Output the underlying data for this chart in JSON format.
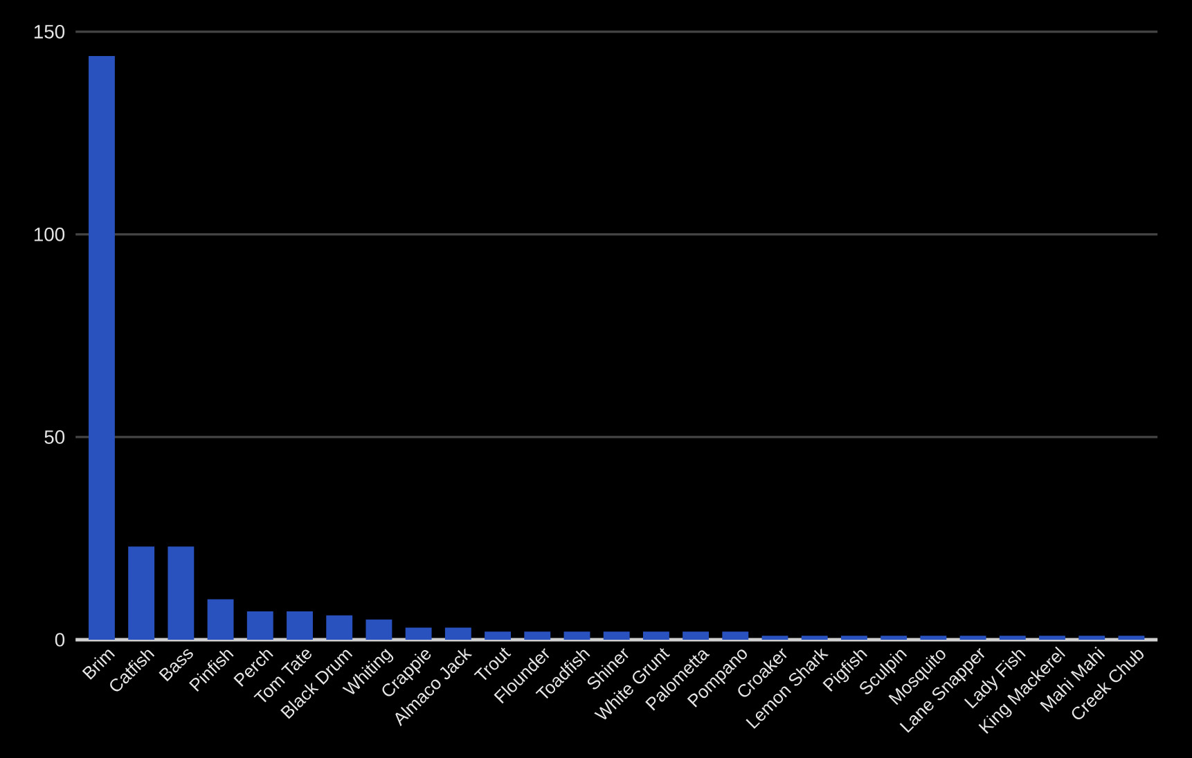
{
  "chart_data": {
    "type": "bar",
    "categories": [
      "Brim",
      "Catfish",
      "Bass",
      "Pinfish",
      "Perch",
      "Tom Tate",
      "Black Drum",
      "Whiting",
      "Crappie",
      "Almaco Jack",
      "Trout",
      "Flounder",
      "Toadfish",
      "Shiner",
      "White Grunt",
      "Palometta",
      "Pompano",
      "Croaker",
      "Lemon Shark",
      "Pigfish",
      "Sculpin",
      "Mosquito",
      "Lane Snapper",
      "Lady Fish",
      "King Mackerel",
      "Mahi Mahi",
      "Creek Chub"
    ],
    "values": [
      144,
      23,
      23,
      10,
      7,
      7,
      6,
      5,
      3,
      3,
      2,
      2,
      2,
      2,
      2,
      2,
      2,
      1,
      1,
      1,
      1,
      1,
      1,
      1,
      1,
      1,
      1
    ],
    "color": "#2a52be",
    "ylim": [
      0,
      150
    ],
    "yticks": [
      0,
      50,
      100,
      150
    ],
    "grid": "y"
  }
}
